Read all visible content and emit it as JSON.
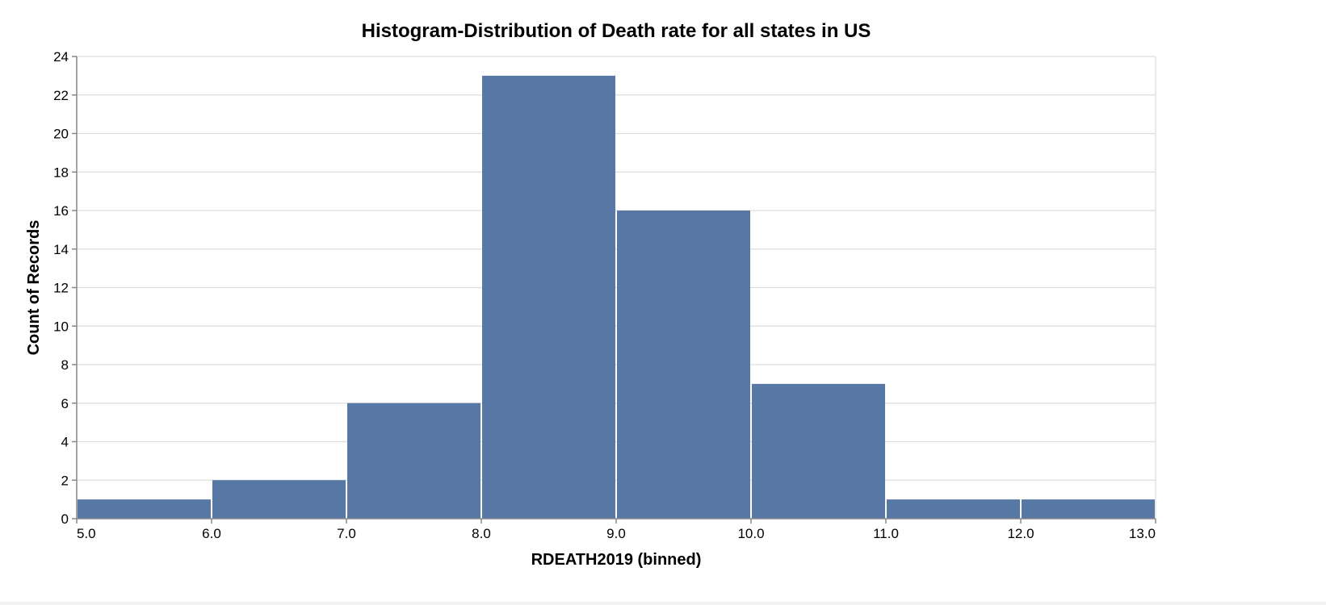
{
  "chart_data": {
    "type": "bar",
    "title": "Histogram-Distribution of Death rate for all states in US",
    "xlabel": "RDEATH2019 (binned)",
    "ylabel": "Count of Records",
    "bins": [
      {
        "start": 5.0,
        "end": 6.0,
        "count": 1
      },
      {
        "start": 6.0,
        "end": 7.0,
        "count": 2
      },
      {
        "start": 7.0,
        "end": 8.0,
        "count": 6
      },
      {
        "start": 8.0,
        "end": 9.0,
        "count": 23
      },
      {
        "start": 9.0,
        "end": 10.0,
        "count": 16
      },
      {
        "start": 10.0,
        "end": 11.0,
        "count": 7
      },
      {
        "start": 11.0,
        "end": 12.0,
        "count": 1
      },
      {
        "start": 12.0,
        "end": 13.0,
        "count": 1
      }
    ],
    "xlim": [
      5.0,
      13.0
    ],
    "ylim": [
      0,
      24
    ],
    "x_ticks": [
      "5.0",
      "6.0",
      "7.0",
      "8.0",
      "9.0",
      "10.0",
      "11.0",
      "12.0",
      "13.0"
    ],
    "y_ticks": [
      "0",
      "2",
      "4",
      "6",
      "8",
      "10",
      "12",
      "14",
      "16",
      "18",
      "20",
      "22",
      "24"
    ],
    "grid": true,
    "bar_color": "#5778a4"
  }
}
